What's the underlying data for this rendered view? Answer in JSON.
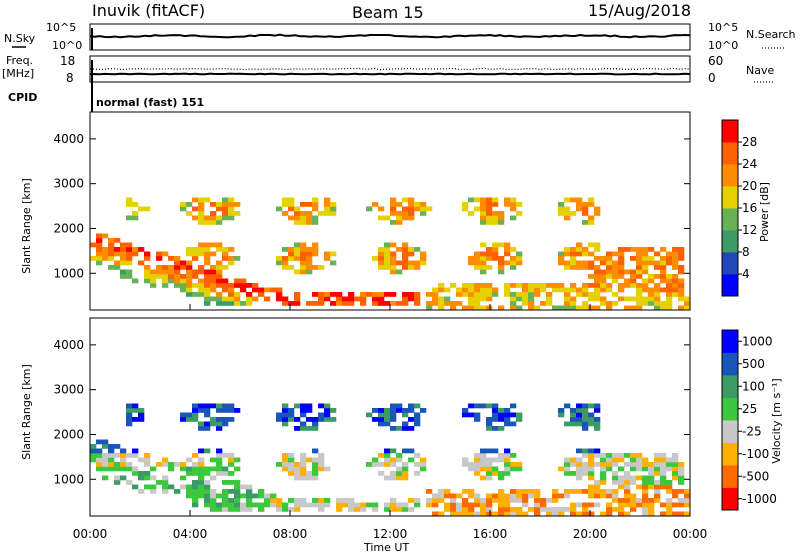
{
  "header": {
    "station": "Inuvik (fitACF)",
    "beam": "Beam 15",
    "date": "15/Aug/2018"
  },
  "top_panel": {
    "left_label": "N.Sky",
    "left_ticks": [
      "10^5",
      "10^0"
    ],
    "right_ticks": [
      "10^5",
      "10^0"
    ],
    "right_label": "N.Search"
  },
  "freq_panel": {
    "left_label_line1": "Freq.",
    "left_label_line2": "[MHz]",
    "left_ticks": [
      "18",
      "8"
    ],
    "right_ticks": [
      "60",
      "0"
    ],
    "right_label": "Nave",
    "cpid_label": "CPID",
    "cpid_text": "normal (fast) 151"
  },
  "colors": {
    "power": [
      "#0000ff",
      "#2346b8",
      "#3d9b66",
      "#67b257",
      "#e6d100",
      "#ff8c00",
      "#ff6000",
      "#ff0000"
    ],
    "velocity": [
      "#ff0000",
      "#ff6a00",
      "#ffb000",
      "#c8c8c8",
      "#3cc83c",
      "#3c9b64",
      "#1a56b8",
      "#0000ff"
    ]
  },
  "chart_data": [
    {
      "type": "heatmap",
      "name": "power",
      "ylabel": "Slant Range [km]",
      "yticks": [
        1000,
        2000,
        3000,
        4000
      ],
      "ylim": [
        180,
        4600
      ],
      "colorbar_label": "Power [dB]",
      "colorbar_ticks": [
        "4",
        "8",
        "12",
        "16",
        "20",
        "24",
        "28"
      ]
    },
    {
      "type": "heatmap",
      "name": "velocity",
      "ylabel": "Slant Range [km]",
      "yticks": [
        1000,
        2000,
        3000,
        4000
      ],
      "ylim": [
        180,
        4600
      ],
      "colorbar_label": "Velocity [m s⁻¹]",
      "colorbar_ticks": [
        "-1000",
        "-500",
        "-100",
        "-25",
        "25",
        "100",
        "500",
        "1000"
      ]
    }
  ],
  "x_axis": {
    "ticks": [
      "00:00",
      "04:00",
      "08:00",
      "12:00",
      "16:00",
      "20:00",
      "00:00"
    ],
    "label": "Time UT"
  }
}
